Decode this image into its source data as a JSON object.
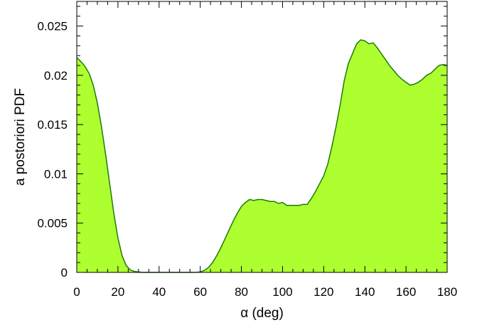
{
  "chart_data": {
    "type": "area",
    "title": "",
    "xlabel": "α  (deg)",
    "ylabel": "a postoriori PDF",
    "xlim": [
      0,
      180
    ],
    "ylim": [
      0,
      0.0275
    ],
    "grid": false,
    "legend": "none",
    "x_ticks": [
      0,
      20,
      40,
      60,
      80,
      100,
      120,
      140,
      160,
      180
    ],
    "x_tick_labels": [
      "0",
      "20",
      "40",
      "60",
      "80",
      "100",
      "120",
      "140",
      "160",
      "180"
    ],
    "y_ticks": [
      0,
      0.005,
      0.01,
      0.015,
      0.02,
      0.025
    ],
    "y_tick_labels": [
      "0",
      "0.005",
      "0.01",
      "0.015",
      "0.02",
      "0.025"
    ],
    "fill_color": "#adff2f",
    "line_color": "#1f7a0a",
    "series": [
      {
        "x": [
          0,
          2,
          4,
          6,
          8,
          10,
          12,
          14,
          16,
          18,
          20,
          22,
          24,
          26,
          28,
          30,
          32,
          35,
          40,
          45,
          50,
          55,
          58,
          60,
          62,
          64,
          66,
          68,
          70,
          72,
          74,
          76,
          78,
          80,
          82,
          84,
          86,
          88,
          90,
          92,
          94,
          96,
          98,
          100,
          102,
          104,
          106,
          108,
          110,
          112,
          114,
          116,
          118,
          120,
          122,
          124,
          126,
          128,
          130,
          132,
          134,
          136,
          138,
          140,
          142,
          144,
          146,
          148,
          150,
          152,
          154,
          156,
          158,
          160,
          162,
          164,
          166,
          168,
          170,
          172,
          174,
          176,
          178,
          180
        ],
        "y": [
          0.0218,
          0.0214,
          0.0209,
          0.0202,
          0.019,
          0.0172,
          0.0148,
          0.012,
          0.009,
          0.006,
          0.0035,
          0.0017,
          0.0007,
          0.00025,
          0.0001,
          5e-05,
          0.0,
          0.0,
          0.0,
          0.0,
          0.0,
          0.0,
          1e-05,
          5e-05,
          0.0002,
          0.0005,
          0.001,
          0.0017,
          0.0025,
          0.0034,
          0.0043,
          0.0052,
          0.006,
          0.0067,
          0.0071,
          0.0074,
          0.0073,
          0.0074,
          0.0074,
          0.0073,
          0.0072,
          0.0072,
          0.007,
          0.0071,
          0.0068,
          0.0068,
          0.0068,
          0.0068,
          0.0069,
          0.0069,
          0.0075,
          0.0082,
          0.009,
          0.0098,
          0.011,
          0.0128,
          0.0148,
          0.017,
          0.0195,
          0.0212,
          0.0222,
          0.0232,
          0.0236,
          0.0235,
          0.0232,
          0.0233,
          0.0228,
          0.0222,
          0.0216,
          0.021,
          0.0205,
          0.02,
          0.0196,
          0.0193,
          0.019,
          0.0191,
          0.0193,
          0.0196,
          0.02,
          0.0202,
          0.0206,
          0.021,
          0.0211,
          0.021
        ]
      }
    ]
  }
}
